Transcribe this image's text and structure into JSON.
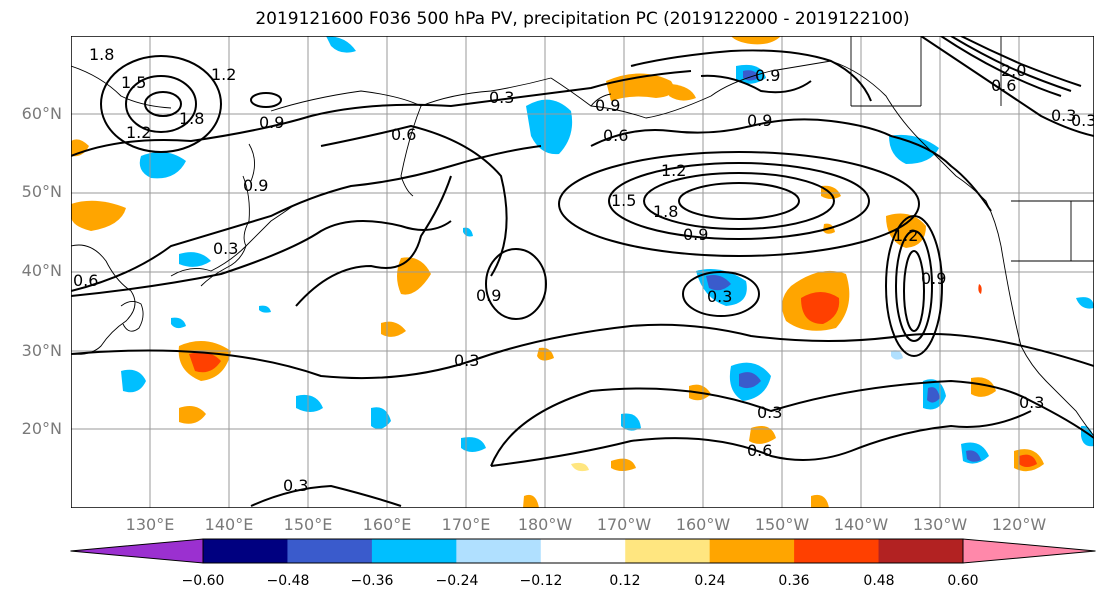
{
  "title": "2019121600 F036 500 hPa PV, precipitation PC (2019122000 - 2019122100)",
  "lat_labels": [
    "60°N",
    "50°N",
    "40°N",
    "30°N",
    "20°N"
  ],
  "lon_labels": [
    "130°E",
    "140°E",
    "150°E",
    "160°E",
    "170°E",
    "180°W",
    "170°W",
    "160°W",
    "150°W",
    "140°W",
    "130°W",
    "120°W"
  ],
  "contour_labels": [
    "1.8",
    "1.5",
    "1.2",
    "1.8",
    "1.2",
    "0.9",
    "0.3",
    "0.9",
    "0.6",
    "0.9",
    "0.9",
    "0.3",
    "0.6",
    "0.9",
    "1.2",
    "1.5",
    "1.8",
    "0.9",
    "0.3",
    "0.9",
    "1.2",
    "0.9",
    "0.3",
    "0.3",
    "0.6",
    "0.3",
    "0.3",
    "0.6",
    "0.3",
    "2.0",
    "0.6",
    "0.3"
  ],
  "colorbar": {
    "ticks": [
      "−0.60",
      "−0.48",
      "−0.36",
      "−0.24",
      "−0.12",
      "0.12",
      "0.24",
      "0.36",
      "0.48",
      "0.60"
    ],
    "colors": [
      "#9b30d0",
      "#000080",
      "#3a5bcc",
      "#00bfff",
      "#b0e0ff",
      "#ffffff",
      "#ffe680",
      "#ffa500",
      "#ff4000",
      "#b22222",
      "#ff88aa"
    ]
  }
}
